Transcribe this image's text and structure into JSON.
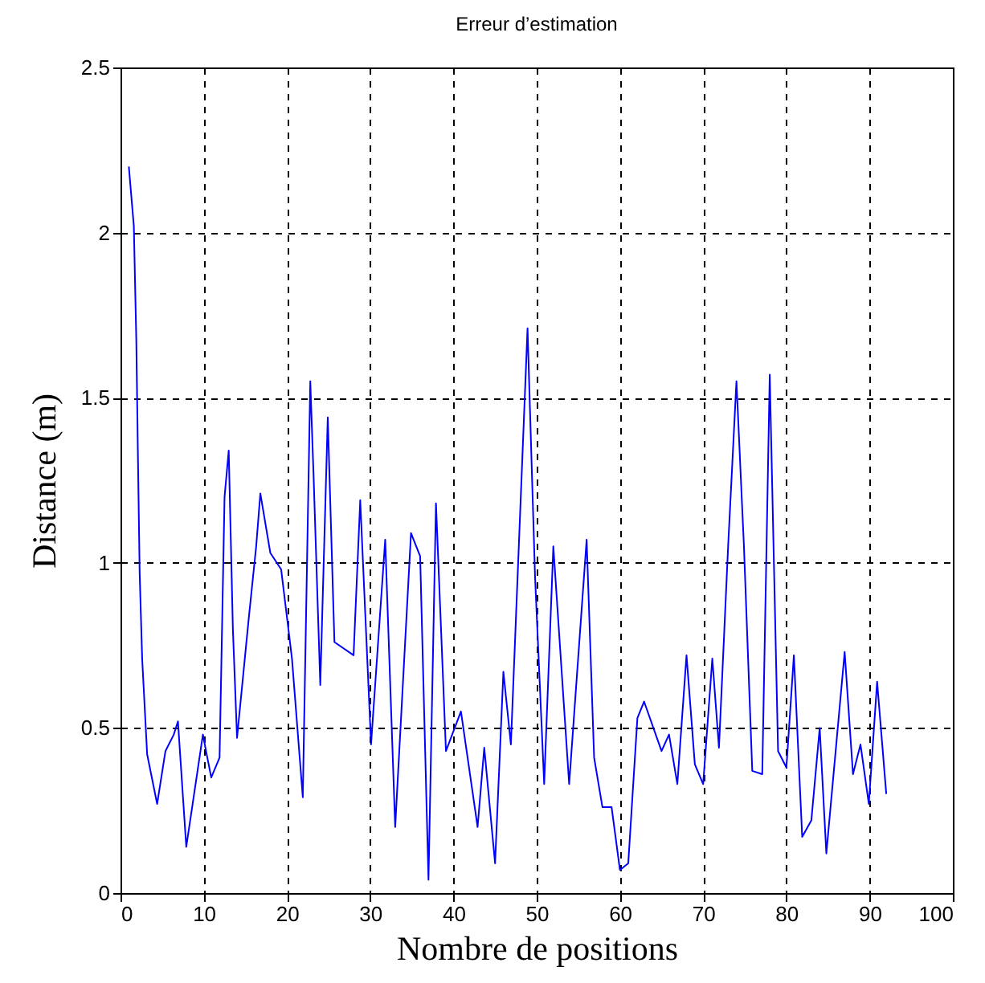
{
  "chart_data": {
    "type": "line",
    "title": "Erreur d’estimation",
    "xlabel": "Nombre de positions",
    "ylabel": "Distance (m)",
    "xlim": [
      0,
      100
    ],
    "xticks": [
      0,
      10,
      20,
      30,
      40,
      50,
      60,
      70,
      80,
      90,
      100
    ],
    "ylim": [
      0,
      2.5
    ],
    "yticks": [
      0,
      0.5,
      1,
      1.5,
      2,
      2.5
    ],
    "grid": true,
    "series": [
      {
        "color": "#0000ff",
        "x": [
          1,
          1.6,
          1.9,
          2.1,
          2.3,
          2.6,
          3.2,
          4.4,
          5.4,
          6.4,
          6.9,
          7.9,
          9.9,
          10.2,
          10.9,
          11.9,
          12.5,
          13,
          13.5,
          14,
          15.4,
          16.3,
          16.8,
          18,
          19.3,
          20.6,
          21.9,
          22.8,
          23.2,
          24,
          24.9,
          25.7,
          28,
          28.8,
          30.1,
          31.8,
          33,
          34.9,
          36,
          37,
          37.9,
          39.1,
          40.9,
          42.9,
          43.7,
          45,
          46,
          46.9,
          48.9,
          49.8,
          50.9,
          52,
          53.9,
          56,
          56.9,
          57.9,
          59,
          60,
          61,
          62.1,
          62.9,
          65,
          65.9,
          66.9,
          68,
          69,
          70,
          71.1,
          71.9,
          73,
          74,
          74.9,
          75.9,
          77.1,
          78,
          79,
          80,
          80.9,
          81.9,
          83,
          84,
          84.8,
          87,
          88,
          88.9,
          89.9,
          90.9,
          92
        ],
        "values": [
          2.2,
          2.02,
          1.67,
          1.31,
          0.97,
          0.71,
          0.42,
          0.27,
          0.43,
          0.48,
          0.52,
          0.14,
          0.48,
          0.44,
          0.35,
          0.41,
          1.2,
          1.34,
          0.8,
          0.47,
          0.83,
          1.05,
          1.21,
          1.03,
          0.98,
          0.71,
          0.29,
          1.55,
          1.26,
          0.63,
          1.44,
          0.76,
          0.72,
          1.19,
          0.45,
          1.07,
          0.2,
          1.09,
          1.02,
          0.04,
          1.18,
          0.43,
          0.55,
          0.2,
          0.44,
          0.09,
          0.67,
          0.45,
          1.71,
          0.96,
          0.33,
          1.05,
          0.33,
          1.07,
          0.41,
          0.26,
          0.26,
          0.07,
          0.09,
          0.53,
          0.58,
          0.43,
          0.48,
          0.33,
          0.72,
          0.39,
          0.33,
          0.71,
          0.44,
          1.05,
          1.55,
          1.05,
          0.37,
          0.36,
          1.57,
          0.43,
          0.38,
          0.72,
          0.17,
          0.22,
          0.5,
          0.12,
          0.73,
          0.36,
          0.45,
          0.27,
          0.64,
          0.3
        ]
      }
    ]
  }
}
